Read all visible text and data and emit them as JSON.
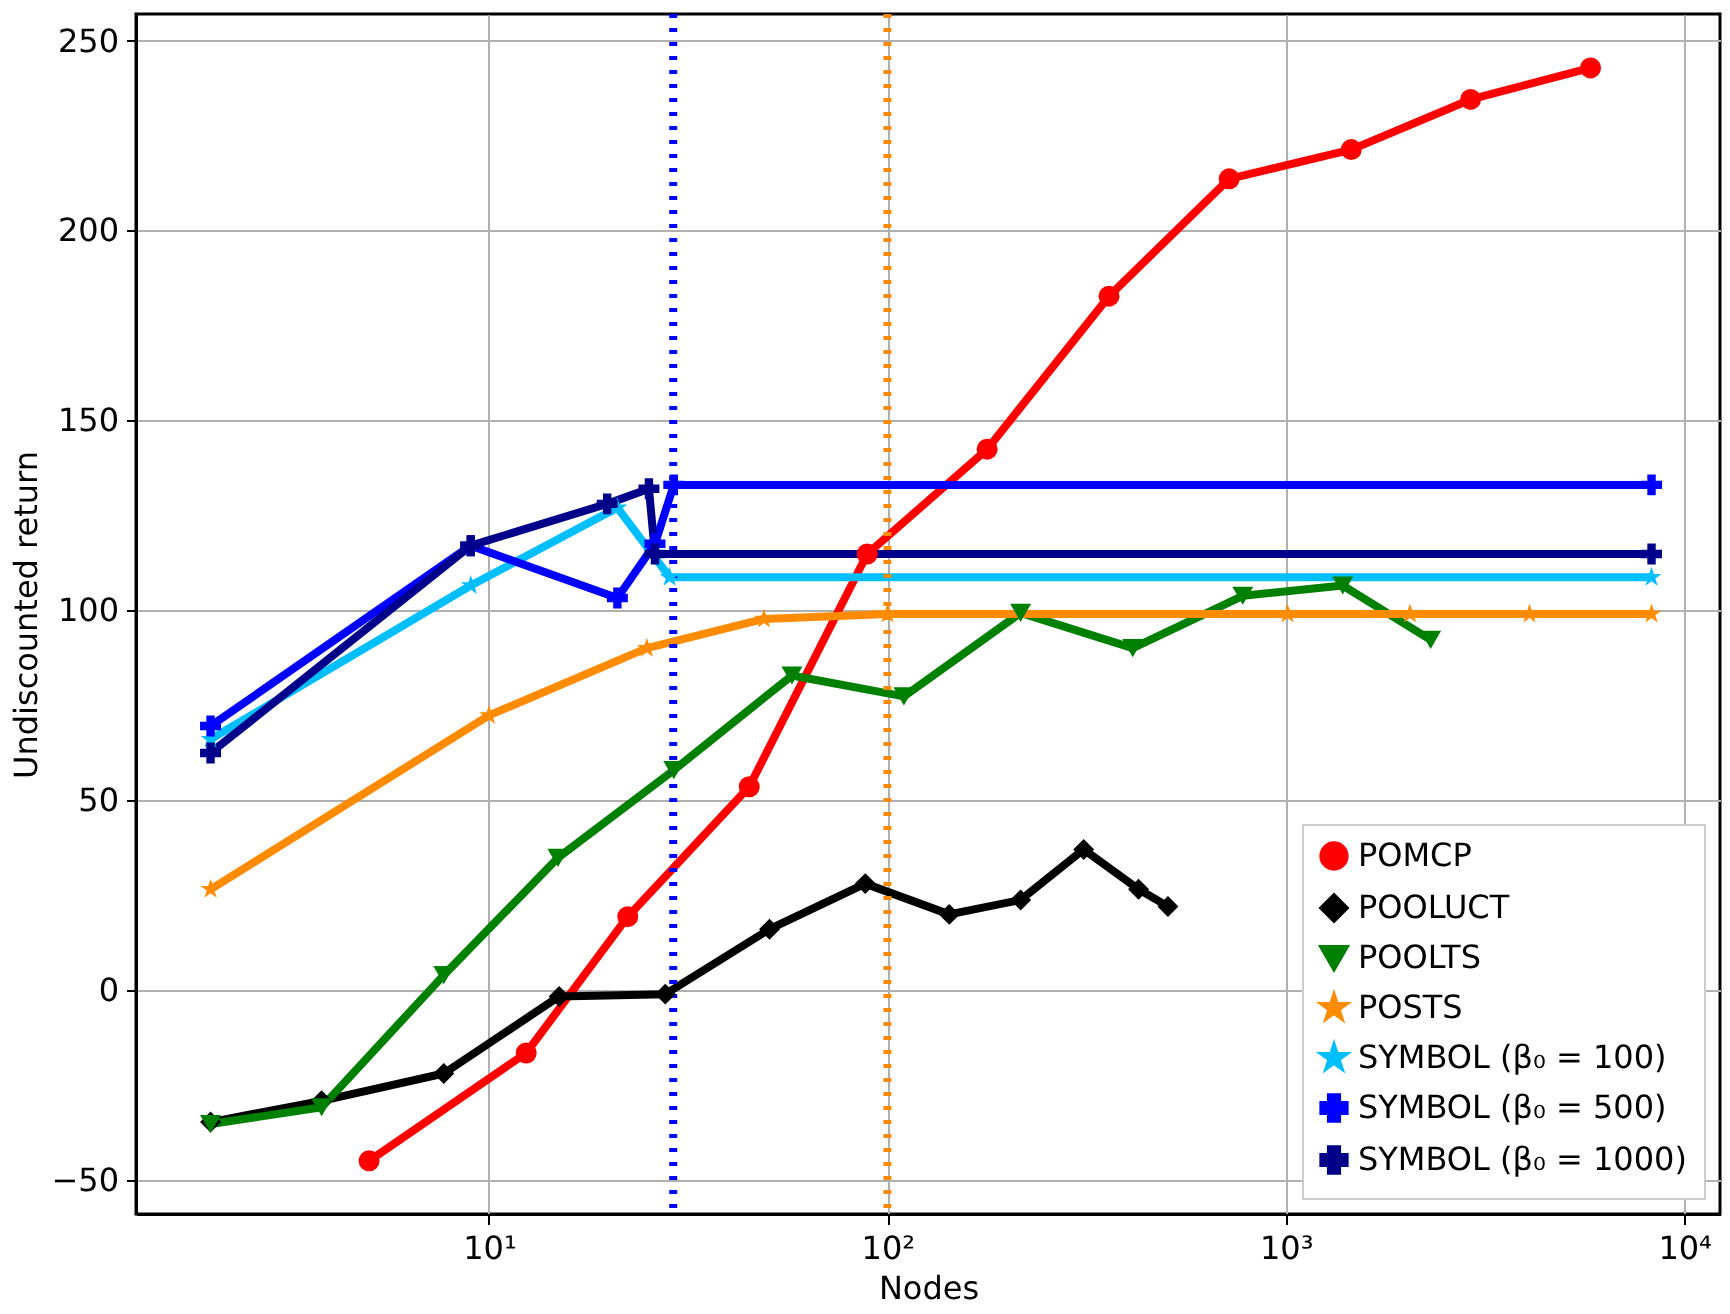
{
  "chart_data": {
    "type": "line",
    "xlabel": "Nodes",
    "ylabel": "Undiscounted return",
    "log": "x",
    "grid": true,
    "legend": "bottom right",
    "line_style": "solid",
    "xlim": [
      1.3,
      12300
    ],
    "ylim": [
      -59,
      257
    ],
    "xticks": [
      {
        "value": 10,
        "label": "10¹"
      },
      {
        "value": 100,
        "label": "10²"
      },
      {
        "value": 1000,
        "label": "10³"
      },
      {
        "value": 10000,
        "label": "10⁴"
      }
    ],
    "yticks": [
      -50,
      0,
      50,
      100,
      150,
      200,
      250
    ],
    "series": [
      {
        "name": "POMCP",
        "color": "#ff0000",
        "marker": "circle",
        "x": [
          5,
          12.4,
          22.3,
          45,
          89,
          178,
          360,
          721,
          1460,
          2910,
          5820
        ],
        "values": [
          -45,
          -16.6,
          19.3,
          53.5,
          114.8,
          142.4,
          182.7,
          213.6,
          221.3,
          234.5,
          242.8
        ]
      },
      {
        "name": "POOLUCT",
        "color": "#000000",
        "marker": "diamond",
        "x": [
          2,
          3.8,
          7.7,
          15,
          27.7,
          50.6,
          88,
          143,
          216,
          311,
          427,
          506
        ],
        "values": [
          -34.8,
          -29.2,
          -22,
          -1.7,
          -1.1,
          16,
          28,
          19.9,
          23.7,
          37,
          26.5,
          22
        ]
      },
      {
        "name": "POOLTS",
        "color": "#008000",
        "marker": "triangle",
        "x": [
          2,
          3.8,
          7.7,
          14.9,
          29.1,
          57.6,
          110,
          216,
          413,
          780,
          1390,
          2310
        ],
        "values": [
          -35.3,
          -30.9,
          3.9,
          34.8,
          57.9,
          82.8,
          77.3,
          99.3,
          90,
          103.8,
          106.5,
          92.2
        ]
      },
      {
        "name": "POSTS",
        "color": "#ff8c00",
        "marker": "star",
        "x": [
          2,
          10,
          24.9,
          49,
          100,
          1010,
          2050,
          4090,
          8280
        ],
        "values": [
          26.5,
          72.3,
          90,
          97.7,
          99,
          99,
          99,
          99,
          99
        ]
      },
      {
        "name": "SYMBOL (β₀ = 100)",
        "color": "#00bfff",
        "marker": "star",
        "x": [
          2,
          9,
          21,
          28.4,
          8280
        ],
        "values": [
          66,
          106.5,
          127,
          108.7,
          108.7
        ]
      },
      {
        "name": "SYMBOL (β₀ = 500)",
        "color": "#0000ff",
        "marker": "cross",
        "x": [
          2,
          9,
          21,
          26.1,
          29.1,
          8280
        ],
        "values": [
          69.5,
          117,
          103.2,
          117.5,
          133,
          133
        ]
      },
      {
        "name": "SYMBOL (β₀ = 1000)",
        "color": "#00008b",
        "marker": "cross",
        "x": [
          2,
          9,
          19.8,
          25.2,
          26.1,
          8280
        ],
        "values": [
          62.4,
          117,
          128,
          132,
          114.8,
          114.8
        ]
      }
    ],
    "ref_lines": [
      {
        "axis": "x",
        "value": 29,
        "color": "#0000ff",
        "line_style": "dotted"
      },
      {
        "axis": "x",
        "value": 100,
        "color": "#ff8c00",
        "line_style": "dotted"
      }
    ]
  }
}
